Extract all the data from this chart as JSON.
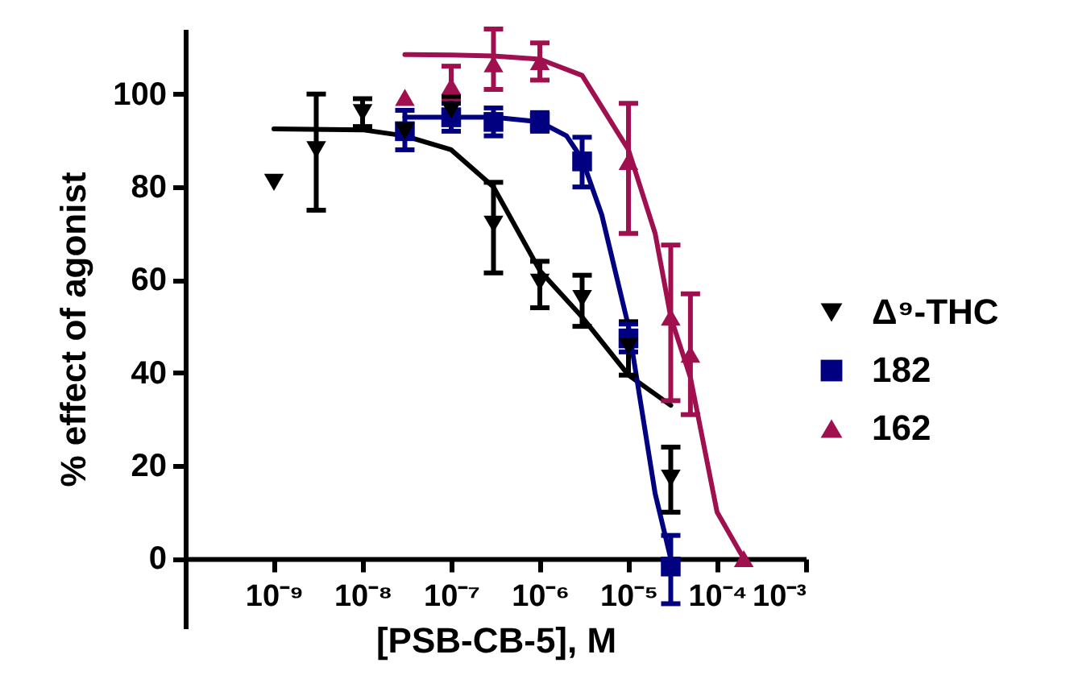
{
  "chart_data": {
    "type": "scatter",
    "xlabel": "[PSB-CB-5], M",
    "ylabel": "% effect of agonist",
    "log": "x",
    "legend": "right",
    "xlim": [
      1e-10,
      0.001
    ],
    "ylim": [
      -15,
      114
    ],
    "xticks": [
      {
        "value": 1e-09,
        "label": "10⁻⁹"
      },
      {
        "value": 1e-08,
        "label": "10⁻⁸"
      },
      {
        "value": 1e-07,
        "label": "10⁻⁷"
      },
      {
        "value": 1e-06,
        "label": "10⁻⁶"
      },
      {
        "value": 1e-05,
        "label": "10⁻⁵"
      },
      {
        "value": 0.0001,
        "label": "10⁻⁴"
      },
      {
        "value": 0.001,
        "label": "10⁻³"
      }
    ],
    "yticks": [
      0,
      20,
      40,
      60,
      80,
      100
    ],
    "series": [
      {
        "name": "Δ⁹-THC",
        "marker": "triangle-down",
        "color": "#000000",
        "x": [
          1e-09,
          3e-09,
          1e-08,
          3e-08,
          1e-07,
          3e-07,
          1e-06,
          3e-06,
          1e-05,
          3e-05
        ],
        "values": [
          81,
          88,
          96,
          92,
          96.5,
          72,
          59.5,
          56,
          45.7,
          17.3
        ],
        "errors": [
          null,
          [
            75,
            100
          ],
          [
            93,
            99
          ],
          null,
          [
            93.5,
            99.5
          ],
          [
            61.5,
            81
          ],
          [
            54,
            64
          ],
          [
            50,
            61
          ],
          [
            39.5,
            51
          ],
          [
            10,
            24
          ]
        ]
      },
      {
        "name": "182",
        "marker": "square",
        "color": "#000080",
        "x": [
          3e-08,
          1e-07,
          3e-07,
          1e-06,
          3e-06,
          1e-05,
          3e-05
        ],
        "values": [
          92,
          95,
          94,
          94,
          85.5,
          47.4,
          -1.7
        ],
        "errors": [
          [
            88,
            96.5
          ],
          [
            92,
            98
          ],
          [
            91,
            97
          ],
          [
            92,
            96
          ],
          [
            80,
            90.7
          ],
          [
            44.5,
            50.5
          ],
          [
            -9.7,
            5
          ]
        ]
      },
      {
        "name": "162",
        "marker": "triangle",
        "color": "#a0104f",
        "x": [
          3e-08,
          1e-07,
          3e-07,
          1e-06,
          1e-05,
          3e-05,
          5e-05,
          0.0002
        ],
        "values": [
          99.3,
          101.7,
          106.5,
          107,
          85.5,
          52,
          44,
          0
        ],
        "errors": [
          null,
          [
            99,
            106
          ],
          [
            101,
            114
          ],
          [
            103,
            111
          ],
          [
            70,
            98
          ],
          [
            34,
            67.5
          ],
          [
            31,
            57
          ],
          null
        ]
      },
      {
        "type": "line",
        "color": "#000000",
        "x": [
          1e-09,
          1e-08,
          3e-08,
          1e-07,
          3e-07,
          1e-06,
          3e-06,
          1e-05,
          3e-05
        ],
        "values": [
          92.5,
          92.3,
          91,
          88,
          80,
          62,
          52,
          39.5,
          33
        ]
      },
      {
        "type": "line",
        "color": "#000080",
        "x": [
          3e-08,
          1e-07,
          3e-07,
          1e-06,
          2e-06,
          3e-06,
          5e-06,
          1e-05,
          2e-05,
          3e-05
        ],
        "values": [
          95,
          95,
          95,
          94,
          91,
          86,
          74,
          50,
          14,
          0
        ]
      },
      {
        "type": "line",
        "color": "#a0104f",
        "x": [
          3e-08,
          1e-07,
          3e-07,
          1e-06,
          3e-06,
          1e-05,
          2e-05,
          3e-05,
          5e-05,
          0.0001,
          0.0002
        ],
        "values": [
          108.5,
          108.4,
          108.2,
          107.5,
          104,
          88,
          70,
          52,
          39,
          10,
          0
        ]
      }
    ]
  }
}
